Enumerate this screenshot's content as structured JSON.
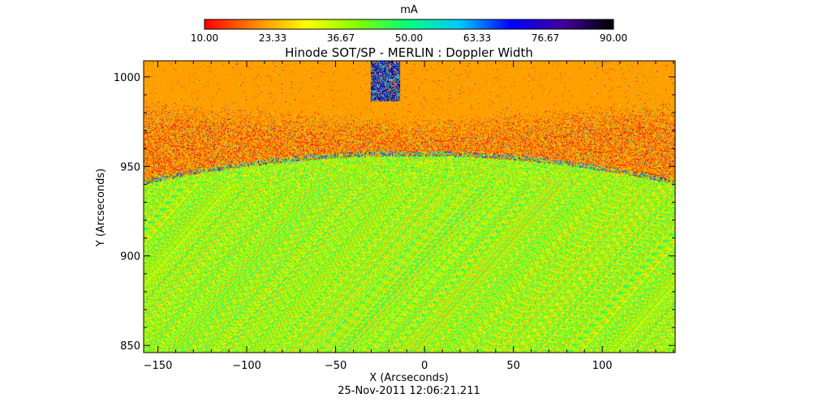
{
  "chart_data": {
    "type": "heatmap",
    "title": "Hinode SOT/SP - MERLIN : Doppler Width",
    "xlabel": "X (Arcseconds)",
    "ylabel": "Y (Arcseconds)",
    "xlim": [
      -158,
      141
    ],
    "ylim": [
      846,
      1009
    ],
    "xticks": [
      -150,
      -100,
      -50,
      0,
      50,
      100
    ],
    "xtick_labels": [
      "−150",
      "−100",
      "−50",
      "0",
      "50",
      "100"
    ],
    "yticks": [
      850,
      900,
      950,
      1000
    ],
    "ytick_labels": [
      "850",
      "900",
      "950",
      "1000"
    ],
    "colorbar": {
      "unit": "mA",
      "range": [
        10.0,
        90.0
      ],
      "tick_labels": [
        "10.00",
        "23.33",
        "36.67",
        "50.00",
        "63.33",
        "76.67",
        "90.00"
      ],
      "colors": [
        "#ff0000",
        "#ff8800",
        "#ffff00",
        "#80ff00",
        "#00ff80",
        "#00c8ff",
        "#0000ff",
        "#4000a0",
        "#000000"
      ]
    },
    "regions": {
      "off_limb_saturated_color": "#ffa000",
      "limb_center_y": 956,
      "limb_edge_y": 940,
      "disk_typical_range_mA": [
        20,
        50
      ],
      "near_limb_typical_range_mA": [
        10,
        25
      ]
    },
    "timestamp": "25-Nov-2011 12:06:21.211"
  }
}
